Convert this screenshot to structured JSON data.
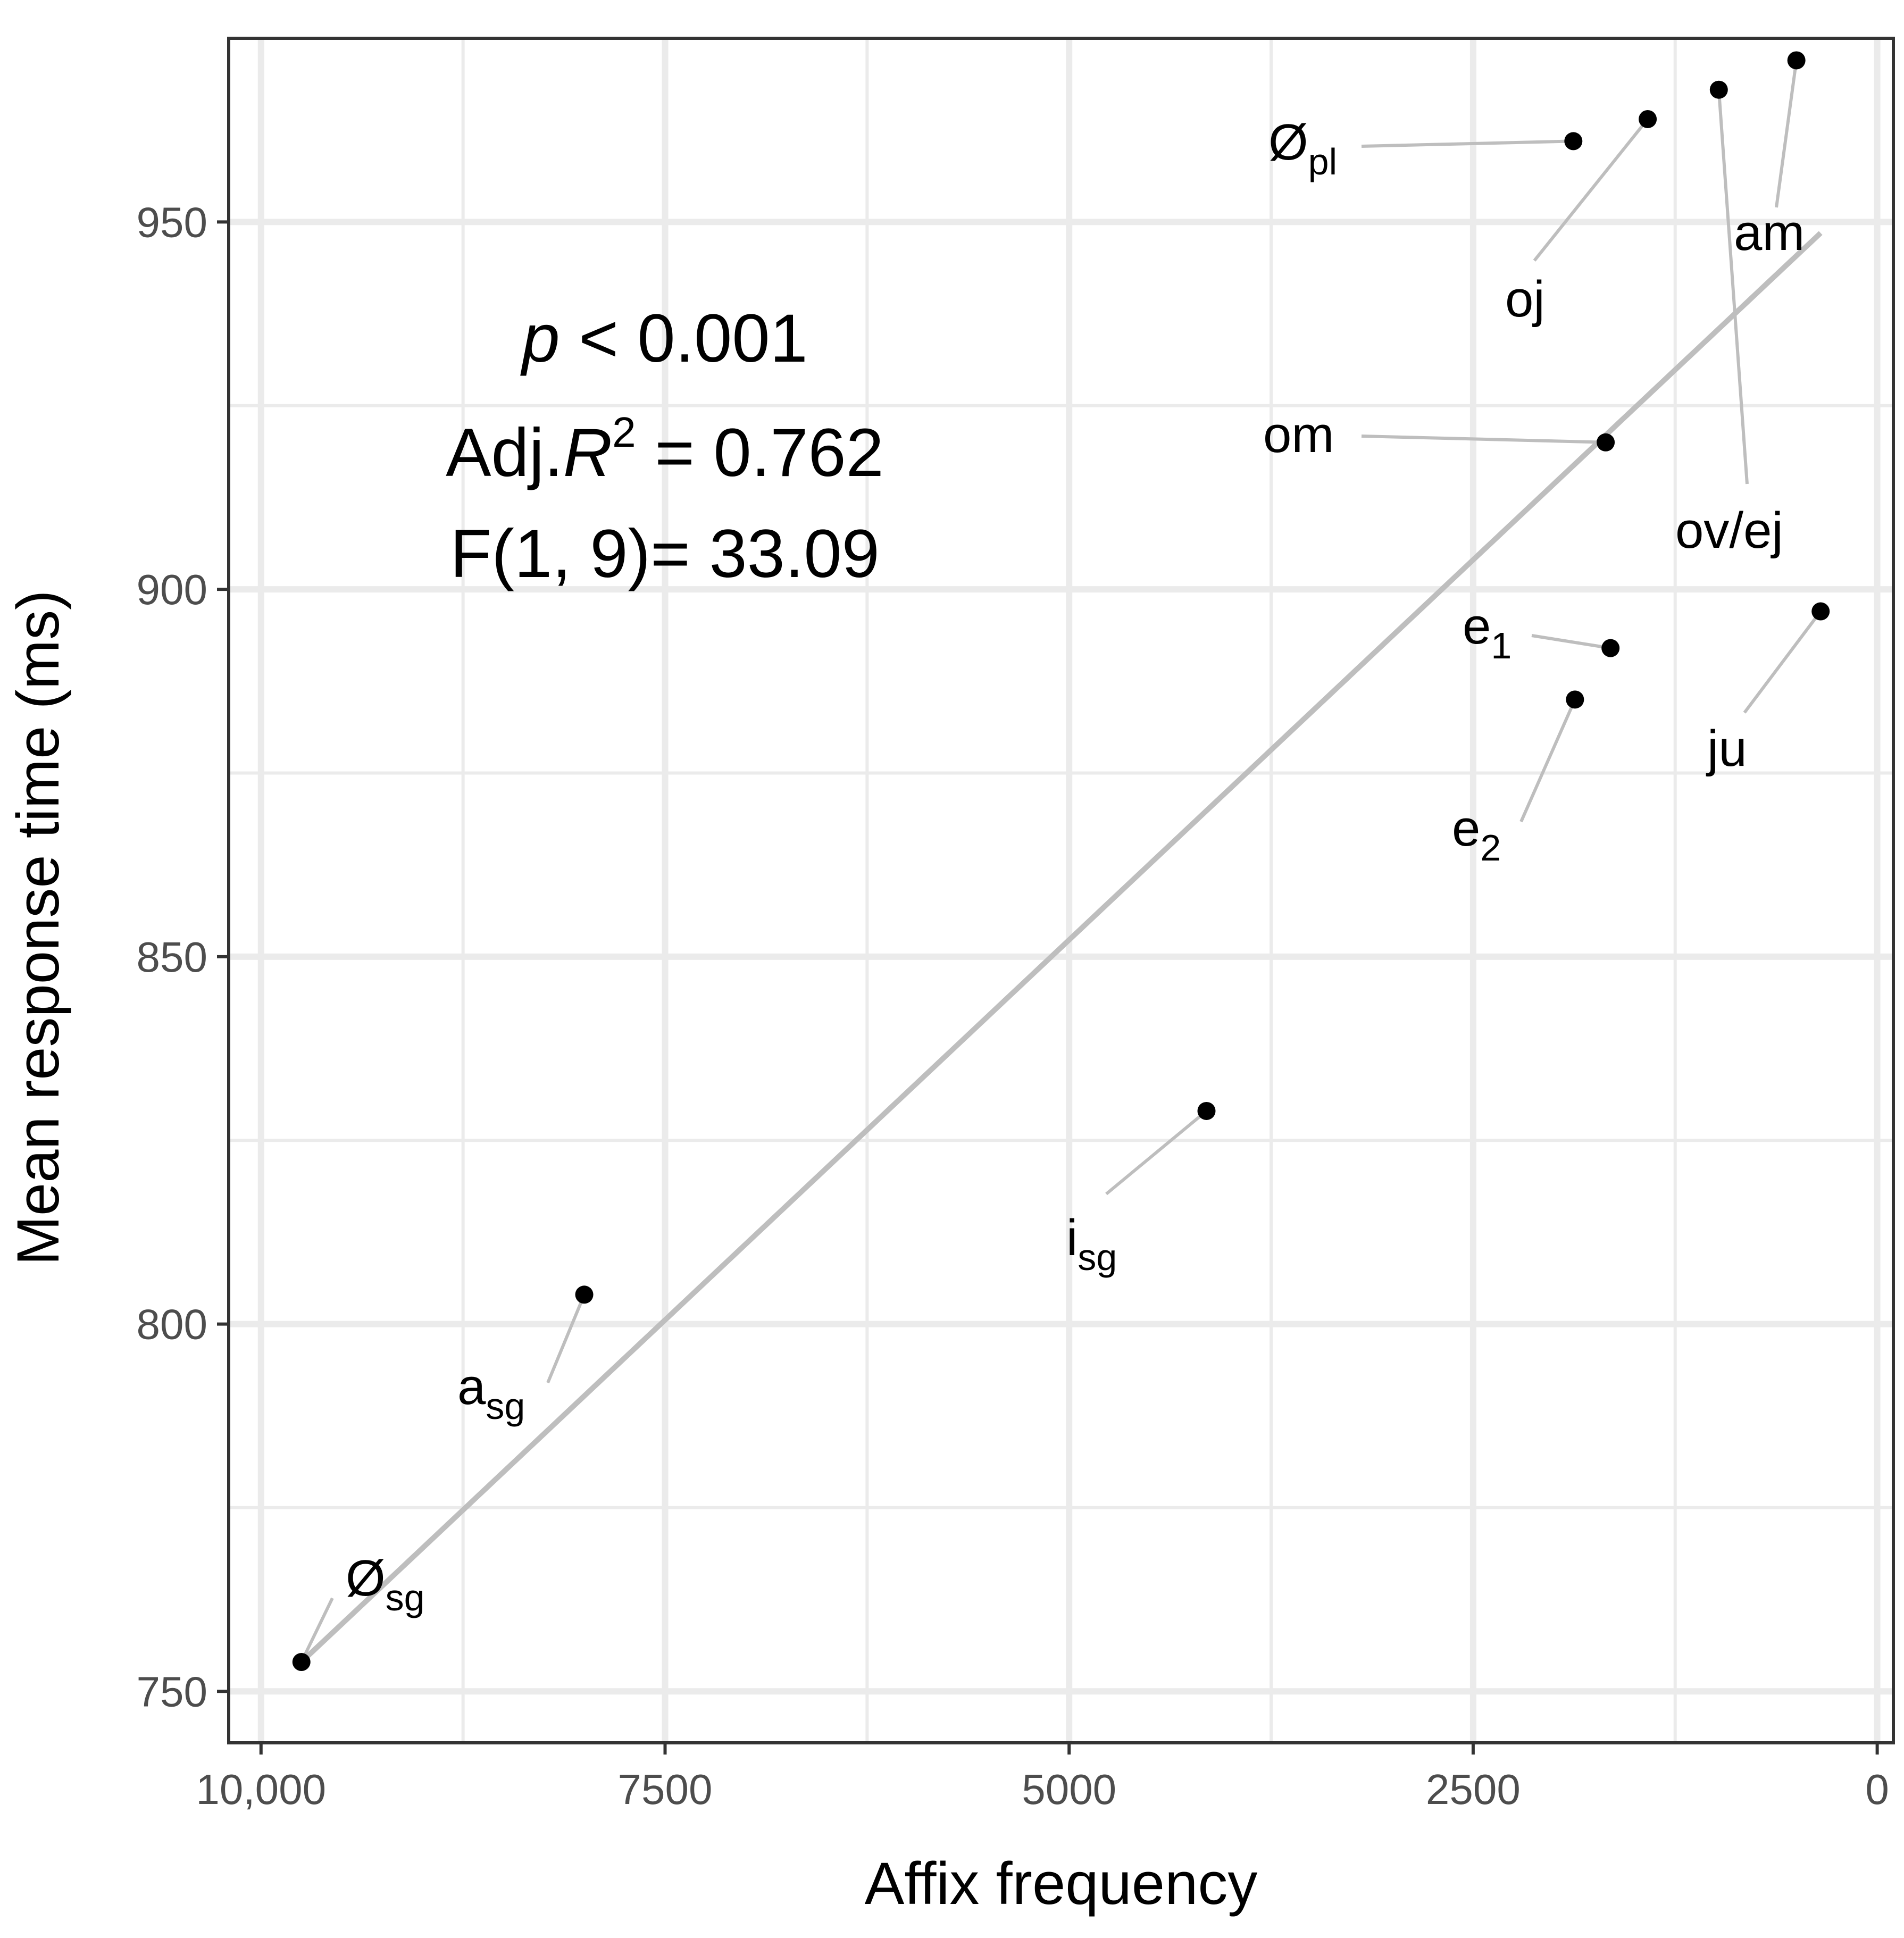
{
  "chart_data": {
    "type": "scatter",
    "xlabel": "Affix frequency",
    "ylabel": "Mean response time (ms)",
    "x_reversed": true,
    "xlim": [
      10200,
      -100
    ],
    "ylim": [
      743,
      975
    ],
    "x_ticks": [
      10000,
      7500,
      5000,
      2500,
      0
    ],
    "x_tick_labels": [
      "10,000",
      "7500",
      "5000",
      "2500",
      "0"
    ],
    "y_ticks": [
      750,
      800,
      850,
      900,
      950
    ],
    "y_tick_labels": [
      "750",
      "800",
      "850",
      "900",
      "950"
    ],
    "points": [
      {
        "base": "Ø",
        "sub": "sg",
        "x": 9750,
        "y": 754
      },
      {
        "base": "a",
        "sub": "sg",
        "x": 8000,
        "y": 804
      },
      {
        "base": "i",
        "sub": "sg",
        "x": 4150,
        "y": 829
      },
      {
        "base": "e",
        "sub": "2",
        "x": 1870,
        "y": 885
      },
      {
        "base": "e",
        "sub": "1",
        "x": 1650,
        "y": 892
      },
      {
        "base": "ju",
        "sub": "",
        "x": 350,
        "y": 897
      },
      {
        "base": "om",
        "sub": "",
        "x": 1680,
        "y": 920
      },
      {
        "base": "Ø",
        "sub": "pl",
        "x": 1880,
        "y": 961
      },
      {
        "base": "oj",
        "sub": "",
        "x": 1420,
        "y": 964
      },
      {
        "base": "ov/ej",
        "sub": "",
        "x": 980,
        "y": 968
      },
      {
        "base": "am",
        "sub": "",
        "x": 500,
        "y": 972
      }
    ],
    "fit_line": {
      "x": [
        9750,
        350
      ],
      "y": [
        754,
        948.5
      ]
    },
    "annotation": {
      "p_symbol": "p",
      "p_rest": " < 0.001",
      "adj_prefix": "Adj.",
      "adj_r": "R",
      "adj_sup": "2",
      "adj_rest": " = 0.762",
      "f_text": "F(1, 9)= 33.09"
    },
    "colors": {
      "points": "#000000",
      "fit_line": "#bebebe",
      "grid": "#ebebeb",
      "panel_border": "#333333",
      "leader": "#bebebe"
    }
  }
}
